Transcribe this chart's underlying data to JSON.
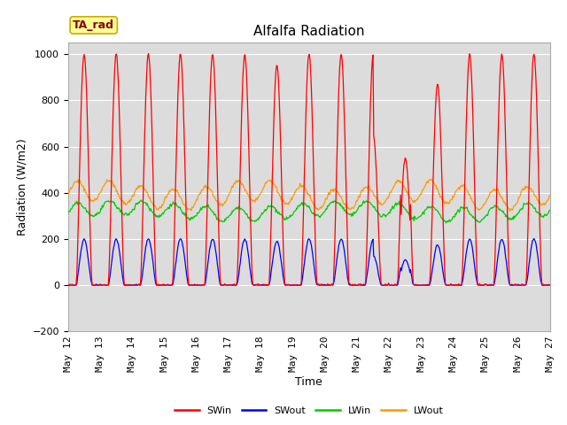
{
  "title": "Alfalfa Radiation",
  "xlabel": "Time",
  "ylabel": "Radiation (W/m2)",
  "ylim": [
    -200,
    1050
  ],
  "background_color": "#dcdcdc",
  "legend_labels": [
    "SWin",
    "SWout",
    "LWin",
    "LWout"
  ],
  "legend_colors": [
    "#ff0000",
    "#0000ff",
    "#00cc00",
    "#ff9900"
  ],
  "annotation_text": "TA_rad",
  "annotation_bg": "#ffff99",
  "annotation_border": "#ccaa00",
  "title_fontsize": 11,
  "axis_label_fontsize": 9,
  "tick_label_fontsize": 8
}
